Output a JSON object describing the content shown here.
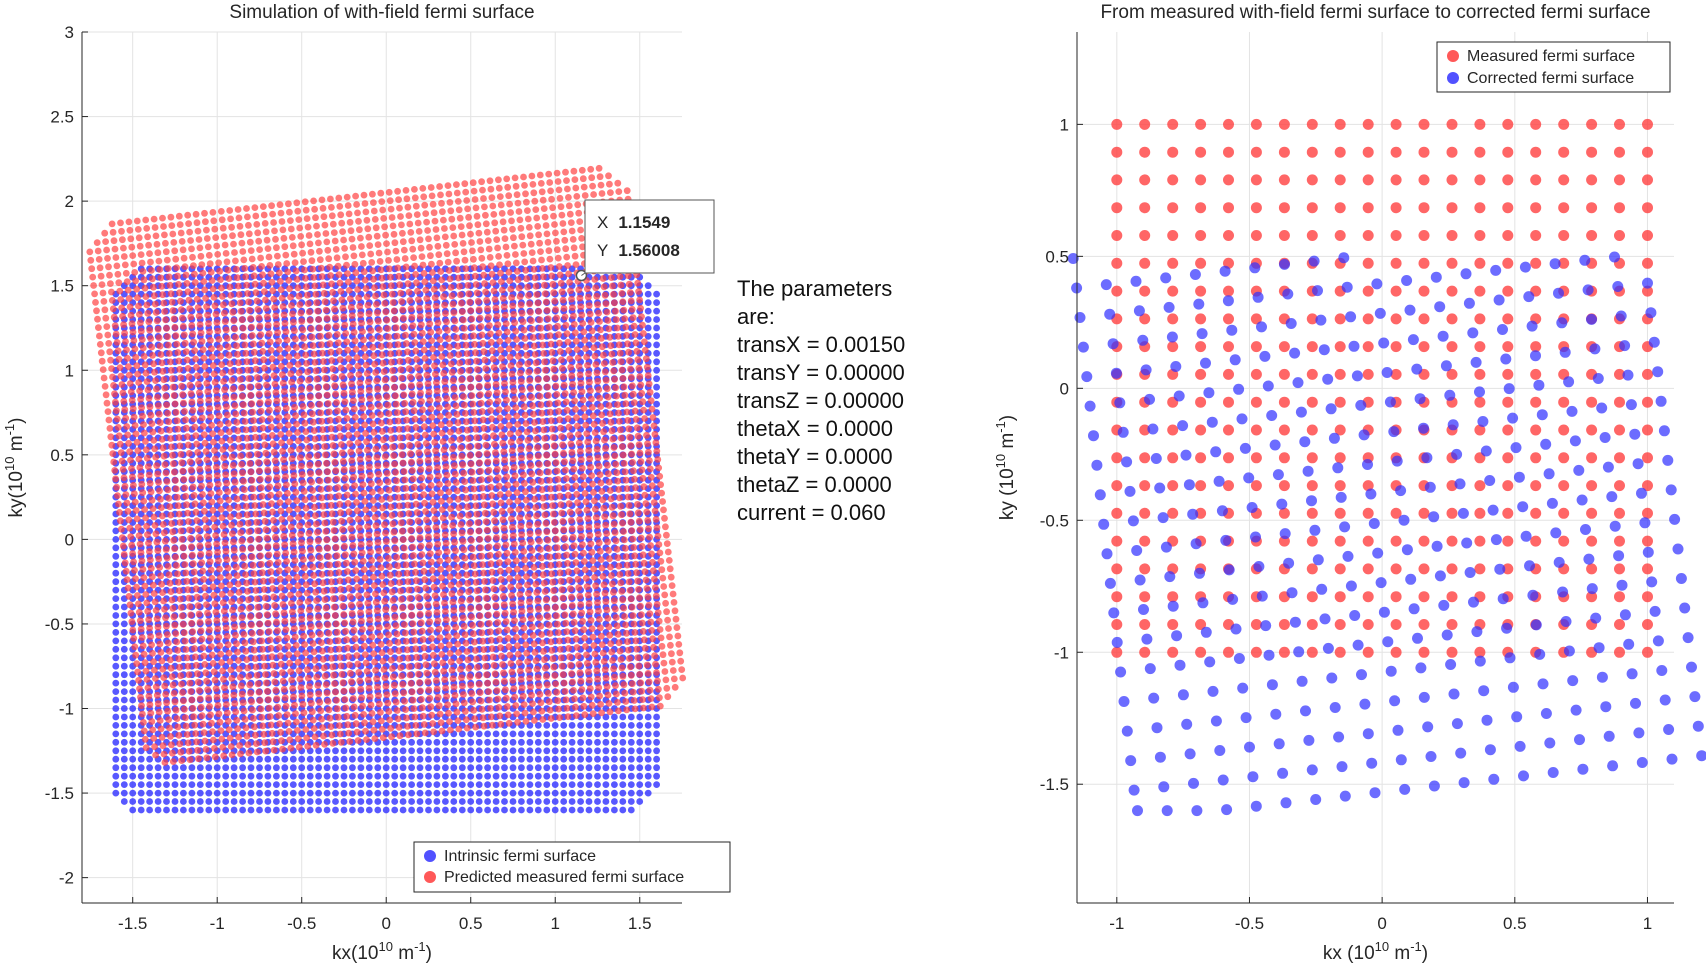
{
  "chart_data": [
    {
      "type": "scatter",
      "title": "Simulation of with-field fermi surface",
      "xlabel": {
        "base": "kx(10",
        "sup1": "10",
        "mid": "  m",
        "sup2": "-1",
        "end": ")"
      },
      "ylabel": {
        "base": "ky(10",
        "sup1": "10",
        "mid": "  m",
        "sup2": "-1",
        "end": ")"
      },
      "xlim": [
        -1.8,
        1.75
      ],
      "ylim": [
        -2.15,
        3.0
      ],
      "xticks": [
        -1.5,
        -1,
        -0.5,
        0,
        0.5,
        1,
        1.5
      ],
      "xtick_labels": [
        "-1.5",
        "-1",
        "-0.5",
        "0",
        "0.5",
        "1",
        "1.5"
      ],
      "yticks": [
        -2,
        -1.5,
        -1,
        -0.5,
        0,
        0.5,
        1,
        1.5,
        2,
        2.5,
        3
      ],
      "ytick_labels": [
        "-2",
        "-1.5",
        "-1",
        "-0.5",
        "0",
        "0.5",
        "1",
        "1.5",
        "2",
        "2.5",
        "3"
      ],
      "grid": true,
      "legend_position": "bottom-right",
      "series": [
        {
          "name": "Intrinsic fermi surface",
          "color": "#3333ff",
          "region": "square",
          "xrange": [
            -1.6,
            1.6
          ],
          "yrange": [
            -1.6,
            1.6
          ],
          "step": 0.05,
          "corner_cut": 0.1,
          "rotation_deg": 0,
          "shift": [
            0,
            0
          ]
        },
        {
          "name": "Predicted measured fermi surface",
          "color": "#ff3b3b",
          "region": "square",
          "xrange": [
            -1.6,
            1.6
          ],
          "yrange": [
            -1.6,
            1.6
          ],
          "step": 0.05,
          "corner_cut": 0.1,
          "rotation_deg": 6.5,
          "shift": [
            0.0,
            0.44
          ]
        }
      ],
      "datatip": {
        "x_label": "X",
        "x_value": "1.1549",
        "y_label": "Y",
        "y_value": "1.56008",
        "x": 1.1549,
        "y": 1.56008
      }
    },
    {
      "type": "scatter",
      "title": "From measured with-field fermi surface to corrected fermi surface",
      "xlabel": {
        "base": "kx  (10",
        "sup1": "10",
        "mid": "  m",
        "sup2": "-1",
        "end": ")"
      },
      "ylabel": {
        "base": "ky  (10",
        "sup1": "10",
        "mid": "  m",
        "sup2": "-1",
        "end": ")"
      },
      "xlim": [
        -1.15,
        1.1
      ],
      "ylim": [
        -1.95,
        1.35
      ],
      "xticks": [
        -1,
        -0.5,
        0,
        0.5,
        1
      ],
      "xtick_labels": [
        "-1",
        "-0.5",
        "0",
        "0.5",
        "1"
      ],
      "yticks": [
        -1.5,
        -1,
        -0.5,
        0,
        0.5,
        1
      ],
      "ytick_labels": [
        "-1.5",
        "-1",
        "-0.5",
        "0",
        "0.5",
        "1"
      ],
      "grid": true,
      "legend_position": "top-right",
      "series": [
        {
          "name": "Measured fermi surface",
          "color": "#ff3b3b",
          "grid_x": [
            -1.0,
            1.0
          ],
          "grid_y": [
            -1.0,
            1.0
          ],
          "step": 0.105
        },
        {
          "name": "Corrected fermi surface",
          "color": "#3333ff",
          "grid_x": [
            -1.0,
            1.0
          ],
          "grid_y": [
            -1.0,
            1.0
          ],
          "step": 0.105,
          "rotation_deg": 6.5,
          "shift": [
            0.02,
            -0.45
          ],
          "spread": 1.07
        }
      ]
    }
  ],
  "parameters": {
    "heading": "The parameters",
    "heading2": "are:",
    "lines": [
      "transX = 0.00150",
      "transY = 0.00000",
      "transZ = 0.00000",
      "thetaX = 0.0000",
      "thetaY = 0.0000",
      "thetaZ = 0.0000",
      "current = 0.060"
    ]
  }
}
